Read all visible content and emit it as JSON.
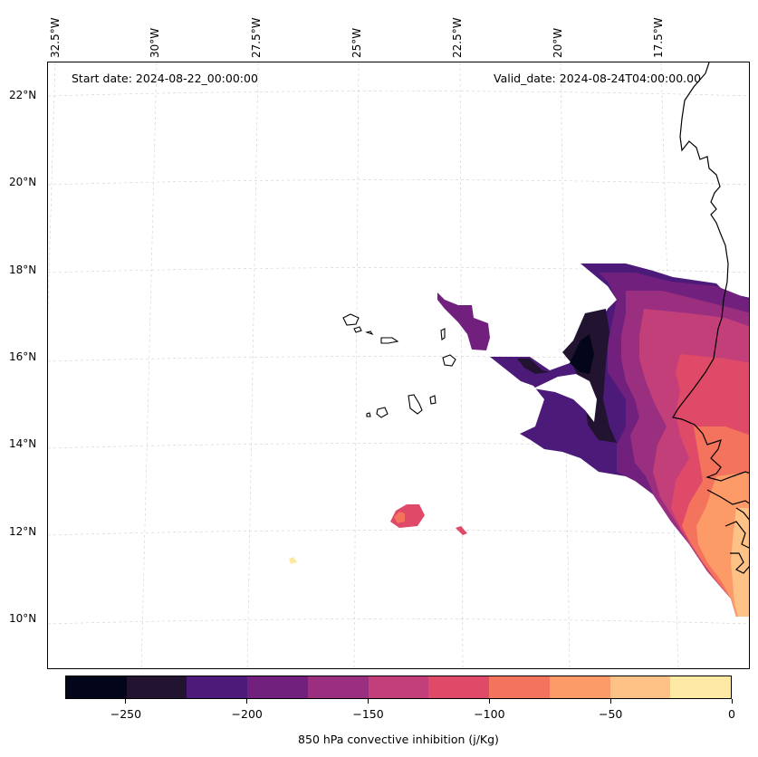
{
  "header": {
    "start_date": "Start date: 2024-08-22_00:00:00",
    "valid_date": "Valid_date: 2024-08-24T04:00:00.00"
  },
  "axes": {
    "top_labels": [
      "32.5°W",
      "30°W",
      "27.5°W",
      "25°W",
      "22.5°W",
      "20°W",
      "17.5°W"
    ],
    "left_labels": [
      "22°N",
      "20°N",
      "18°N",
      "16°N",
      "14°N",
      "12°N",
      "10°N"
    ]
  },
  "colorbar": {
    "label": "850 hPa convective inhibition (j/Kg)",
    "tick_labels": [
      "−250",
      "−200",
      "−150",
      "−100",
      "−50",
      "0"
    ],
    "colors": [
      "#03051a",
      "#221331",
      "#4c1a78",
      "#71207e",
      "#9a2f80",
      "#c33f7a",
      "#de4a68",
      "#f3735c",
      "#fc9b67",
      "#fec287",
      "#fde9a4"
    ],
    "range": [
      -275,
      0
    ]
  },
  "map_layers": {
    "field_levels": [
      "-275 to -250",
      "-250 to -225",
      "-225 to -200",
      "-200 to -175",
      "-175 to -150",
      "-150 to -125",
      "-125 to -100",
      "-100 to -75",
      "-75 to -50",
      "-50 to -25",
      "-25 to 0"
    ],
    "features": [
      "coastline",
      "cape-verde-islands",
      "gridlines"
    ]
  }
}
